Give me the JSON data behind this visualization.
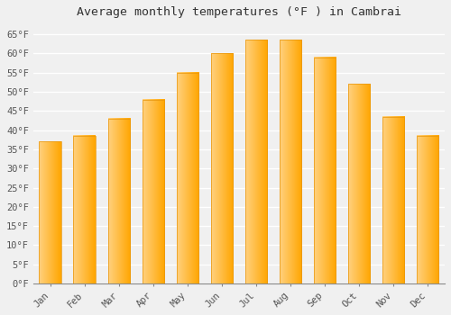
{
  "months": [
    "Jan",
    "Feb",
    "Mar",
    "Apr",
    "May",
    "Jun",
    "Jul",
    "Aug",
    "Sep",
    "Oct",
    "Nov",
    "Dec"
  ],
  "values": [
    37,
    38.5,
    43,
    48,
    55,
    60,
    63.5,
    63.5,
    59,
    52,
    43.5,
    38.5
  ],
  "bar_color_left": "#FFD080",
  "bar_color_right": "#FFA500",
  "bar_edge_color": "#E8950A",
  "title": "Average monthly temperatures (°F ) in Cambrai",
  "ylim": [
    0,
    68
  ],
  "yticks": [
    0,
    5,
    10,
    15,
    20,
    25,
    30,
    35,
    40,
    45,
    50,
    55,
    60,
    65
  ],
  "ytick_labels": [
    "0°F",
    "5°F",
    "10°F",
    "15°F",
    "20°F",
    "25°F",
    "30°F",
    "35°F",
    "40°F",
    "45°F",
    "50°F",
    "55°F",
    "60°F",
    "65°F"
  ],
  "background_color": "#f0f0f0",
  "grid_color": "#ffffff",
  "title_fontsize": 9.5,
  "tick_fontsize": 7.5,
  "font_family": "monospace"
}
